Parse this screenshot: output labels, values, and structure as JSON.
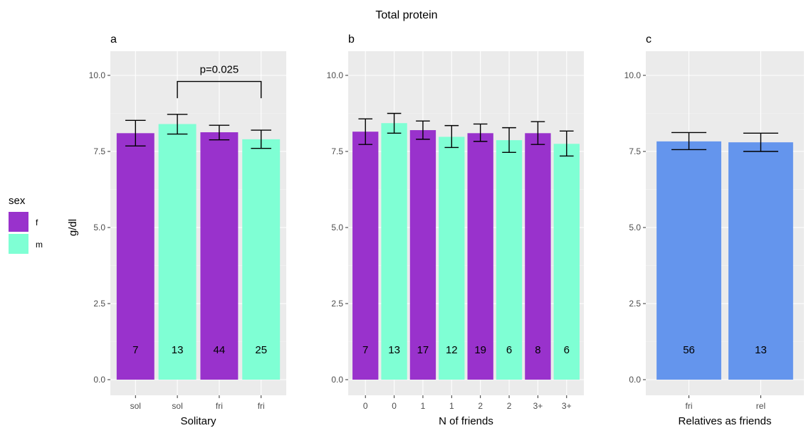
{
  "title": "Total protein",
  "ylabel": "g/dl",
  "legend": {
    "title": "sex",
    "entries": [
      {
        "label": "f",
        "color": "#9932CC"
      },
      {
        "label": "m",
        "color": "#7FFFD4"
      }
    ]
  },
  "colors": {
    "f": "#9932CC",
    "m": "#7FFFD4",
    "all": "#6495ED"
  },
  "chart_data": [
    {
      "type": "bar",
      "tag": "a",
      "xlabel": "Solitary",
      "ylim": [
        0,
        10.5
      ],
      "yticks": [
        "0.0",
        "2.5",
        "5.0",
        "7.5",
        "10.0"
      ],
      "categories": [
        "sol",
        "sol",
        "fri",
        "fri"
      ],
      "groups": [
        "f",
        "m",
        "f",
        "m"
      ],
      "values": [
        8.1,
        8.4,
        8.13,
        7.9
      ],
      "err_low": [
        7.68,
        8.07,
        7.88,
        7.6
      ],
      "err_high": [
        8.52,
        8.72,
        8.36,
        8.2
      ],
      "n": [
        "7",
        "13",
        "44",
        "25"
      ],
      "annotation": {
        "text": "p=0.025",
        "from": 1,
        "to": 3,
        "y": 9.8,
        "drop": 9.25
      }
    },
    {
      "type": "bar",
      "tag": "b",
      "xlabel": "N of friends",
      "ylim": [
        0,
        10.5
      ],
      "yticks": [
        "0.0",
        "2.5",
        "5.0",
        "7.5",
        "10.0"
      ],
      "categories": [
        "0",
        "0",
        "1",
        "1",
        "2",
        "2",
        "3+",
        "3+"
      ],
      "groups": [
        "f",
        "m",
        "f",
        "m",
        "f",
        "m",
        "f",
        "m"
      ],
      "values": [
        8.15,
        8.43,
        8.2,
        7.98,
        8.1,
        7.87,
        8.1,
        7.75
      ],
      "err_low": [
        7.73,
        8.1,
        7.9,
        7.63,
        7.83,
        7.47,
        7.73,
        7.35
      ],
      "err_high": [
        8.57,
        8.75,
        8.5,
        8.35,
        8.4,
        8.28,
        8.48,
        8.17
      ],
      "n": [
        "7",
        "13",
        "17",
        "12",
        "19",
        "6",
        "8",
        "6"
      ]
    },
    {
      "type": "bar",
      "tag": "c",
      "xlabel": "Relatives as friends",
      "ylim": [
        0,
        10.5
      ],
      "yticks": [
        "0.0",
        "2.5",
        "5.0",
        "7.5",
        "10.0"
      ],
      "categories": [
        "fri",
        "rel"
      ],
      "groups": [
        "all",
        "all"
      ],
      "values": [
        7.83,
        7.8
      ],
      "err_low": [
        7.56,
        7.5
      ],
      "err_high": [
        8.12,
        8.1
      ],
      "n": [
        "56",
        "13"
      ]
    }
  ]
}
